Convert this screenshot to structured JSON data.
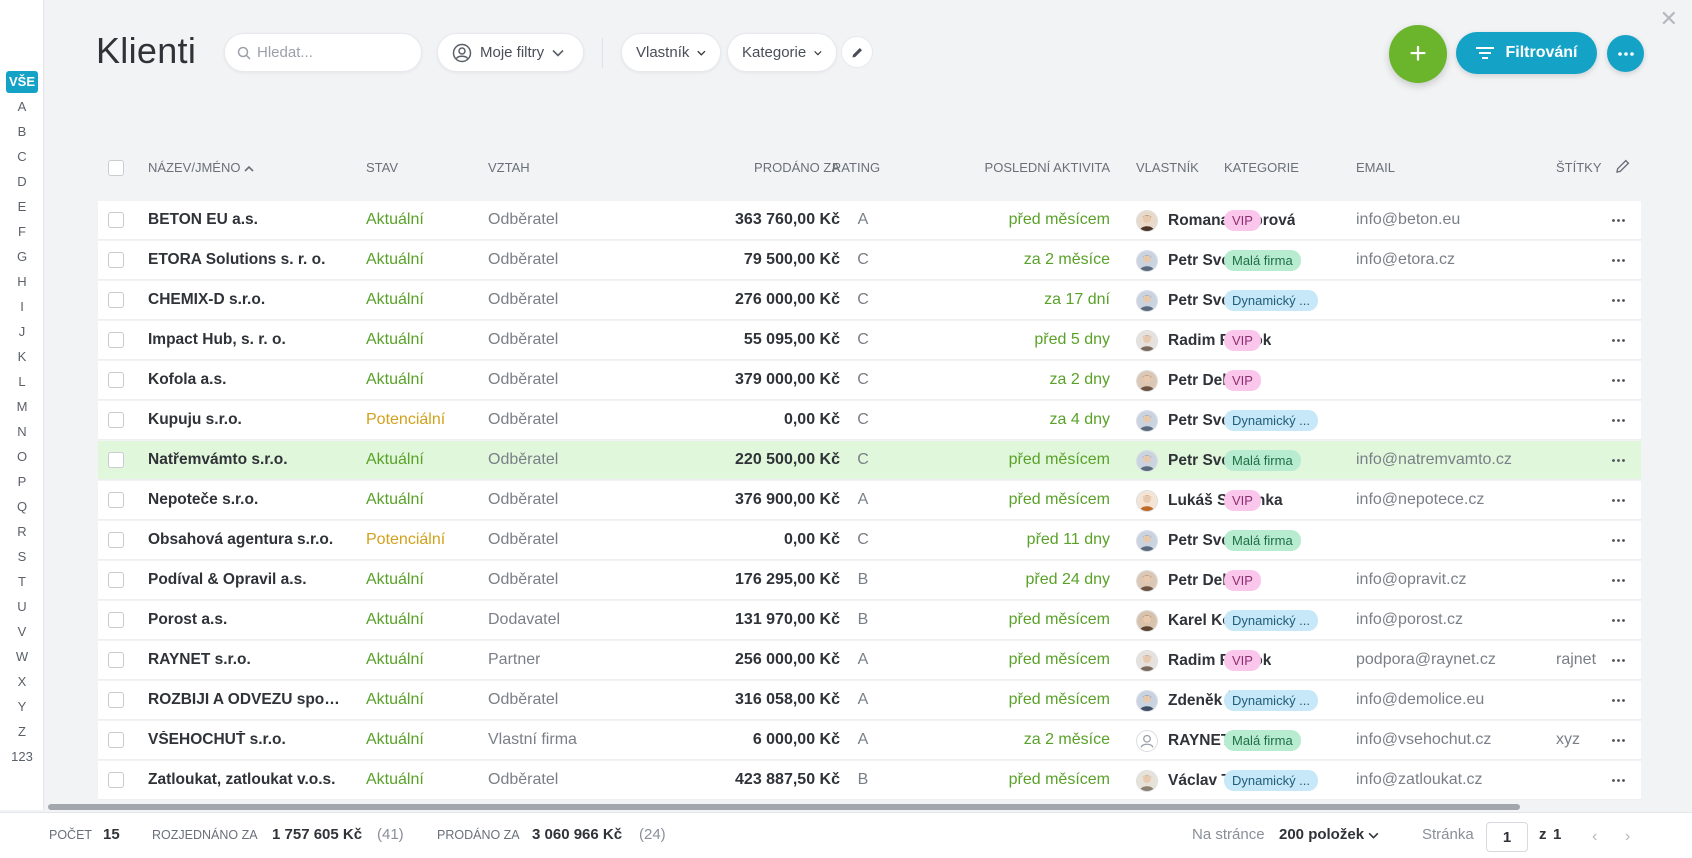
{
  "sidebar": {
    "letters": [
      "VŠE",
      "A",
      "B",
      "C",
      "D",
      "E",
      "F",
      "G",
      "H",
      "I",
      "J",
      "K",
      "L",
      "M",
      "N",
      "O",
      "P",
      "Q",
      "R",
      "S",
      "T",
      "U",
      "V",
      "W",
      "X",
      "Y",
      "Z",
      "123"
    ]
  },
  "header": {
    "title": "Klienti",
    "search_placeholder": "Hledat...",
    "my_filters": "Moje filtry",
    "owner_filter": "Vlastník",
    "category_filter": "Kategorie",
    "add_label": "+",
    "filter_button": "Filtrování"
  },
  "columns": {
    "name": "NÁZEV/JMÉNO",
    "stav": "STAV",
    "vztah": "VZTAH",
    "prodano": "PRODÁNO ZA",
    "rating": "RATING",
    "aktivita": "POSLEDNÍ AKTIVITA",
    "vlastnik": "VLASTNÍK",
    "kategorie": "KATEGORIE",
    "email": "EMAIL",
    "stitky": "ŠTÍTKY"
  },
  "rows": [
    {
      "name": "BETON EU a.s.",
      "stav": "Aktuální",
      "vztah": "Odběratel",
      "prodano": "363 760,00 Kč",
      "rating": "A",
      "aktivita": "před měsícem",
      "owner": "Romana Kaprová",
      "kategorie": "VIP",
      "email": "info@beton.eu",
      "stitky": ""
    },
    {
      "name": "ETORA Solutions s. r. o.",
      "stav": "Aktuální",
      "vztah": "Odběratel",
      "prodano": "79 500,00 Kč",
      "rating": "C",
      "aktivita": "za 2 měsíce",
      "owner": "Petr Svetr",
      "kategorie": "Malá firma",
      "email": "info@etora.cz",
      "stitky": ""
    },
    {
      "name": "CHEMIX-D s.r.o.",
      "stav": "Aktuální",
      "vztah": "Odběratel",
      "prodano": "276 000,00 Kč",
      "rating": "C",
      "aktivita": "za 17 dní",
      "owner": "Petr Svetr",
      "kategorie": "Dynamický ...",
      "email": "",
      "stitky": ""
    },
    {
      "name": "Impact Hub, s. r. o.",
      "stav": "Aktuální",
      "vztah": "Odběratel",
      "prodano": "55 095,00 Kč",
      "rating": "C",
      "aktivita": "před 5 dny",
      "owner": "Radim Rejnok",
      "kategorie": "VIP",
      "email": "",
      "stitky": ""
    },
    {
      "name": "Kofola a.s.",
      "stav": "Aktuální",
      "vztah": "Odběratel",
      "prodano": "379 000,00 Kč",
      "rating": "C",
      "aktivita": "za 2 dny",
      "owner": "Petr Delfín",
      "kategorie": "VIP",
      "email": "",
      "stitky": ""
    },
    {
      "name": "Kupuju s.r.o.",
      "stav": "Potenciální",
      "vztah": "Odběratel",
      "prodano": "0,00 Kč",
      "rating": "C",
      "aktivita": "za 4 dny",
      "owner": "Petr Svetr",
      "kategorie": "Dynamický ...",
      "email": "",
      "stitky": ""
    },
    {
      "name": "Natřemvámto s.r.o.",
      "stav": "Aktuální",
      "vztah": "Odběratel",
      "prodano": "220 500,00 Kč",
      "rating": "C",
      "aktivita": "před měsícem",
      "owner": "Petr Svetr",
      "kategorie": "Malá firma",
      "email": "info@natremvamto.cz",
      "stitky": ""
    },
    {
      "name": "Nepoteče s.r.o.",
      "stav": "Aktuální",
      "vztah": "Odběratel",
      "prodano": "376 900,00 Kč",
      "rating": "A",
      "aktivita": "před měsícem",
      "owner": "Lukáš Sardinka",
      "kategorie": "VIP",
      "email": "info@nepotece.cz",
      "stitky": ""
    },
    {
      "name": "Obsahová agentura s.r.o.",
      "stav": "Potenciální",
      "vztah": "Odběratel",
      "prodano": "0,00 Kč",
      "rating": "C",
      "aktivita": "před 11 dny",
      "owner": "Petr Svetr",
      "kategorie": "Malá firma",
      "email": "",
      "stitky": ""
    },
    {
      "name": "Podíval & Opravil a.s.",
      "stav": "Aktuální",
      "vztah": "Odběratel",
      "prodano": "176 295,00 Kč",
      "rating": "B",
      "aktivita": "před 24 dny",
      "owner": "Petr Delfín",
      "kategorie": "VIP",
      "email": "info@opravit.cz",
      "stitky": ""
    },
    {
      "name": "Porost a.s.",
      "stav": "Aktuální",
      "vztah": "Dodavatel",
      "prodano": "131 970,00 Kč",
      "rating": "B",
      "aktivita": "před měsícem",
      "owner": "Karel Kosatka",
      "kategorie": "Dynamický ...",
      "email": "info@porost.cz",
      "stitky": ""
    },
    {
      "name": "RAYNET s.r.o.",
      "stav": "Aktuální",
      "vztah": "Partner",
      "prodano": "256 000,00 Kč",
      "rating": "A",
      "aktivita": "před měsícem",
      "owner": "Radim Rejnok",
      "kategorie": "VIP",
      "email": "podpora@raynet.cz",
      "stitky": "rajnet"
    },
    {
      "name": "ROZBIJI A ODVEZU spol ...",
      "stav": "Aktuální",
      "vztah": "Odběratel",
      "prodano": "316 058,00 Kč",
      "rating": "A",
      "aktivita": "před měsícem",
      "owner": "Zdeněk Žralok",
      "kategorie": "Dynamický ...",
      "email": "info@demolice.eu",
      "stitky": ""
    },
    {
      "name": "VŠEHOCHUŤ s.r.o.",
      "stav": "Aktuální",
      "vztah": "Vlastní firma",
      "prodano": "6 000,00 Kč",
      "rating": "A",
      "aktivita": "za 2 měsíce",
      "owner": "RAYNET CRM",
      "kategorie": "Malá firma",
      "email": "info@vsehochut.cz",
      "stitky": "xyz"
    },
    {
      "name": "Zatloukat, zatloukat v.o.s.",
      "stav": "Aktuální",
      "vztah": "Odběratel",
      "prodano": "423 887,50 Kč",
      "rating": "B",
      "aktivita": "před měsícem",
      "owner": "Václav Tuňák",
      "kategorie": "Dynamický ...",
      "email": "info@zatloukat.cz",
      "stitky": ""
    }
  ],
  "highlighted_row": "Natřemvámto s.r.o.",
  "footer": {
    "count_label": "POČET",
    "count": "15",
    "open_label": "ROZJEDNÁNO ZA",
    "open_value": "1 757 605 Kč",
    "open_count": "(41)",
    "sold_label": "PRODÁNO ZA",
    "sold_value": "3 060 966 Kč",
    "sold_count": "(24)",
    "per_page_label": "Na stránce",
    "per_page_value": "200 položek",
    "page_label": "Stránka",
    "page_value": "1",
    "page_of": "z",
    "page_total": "1"
  },
  "colors": {
    "accent": "#14a3c7",
    "add": "#6bb52d",
    "status_current": "#5aa12a",
    "status_potential": "#d2a21d",
    "row_highlight": "#e1f7dc"
  },
  "icons": {
    "search": "search-icon",
    "user_circle": "user-circle-icon",
    "chevron": "chevron-down-icon",
    "pencil": "pencil-icon",
    "filter": "filter-lines-icon",
    "more": "more-dots-icon",
    "close": "close-icon"
  }
}
